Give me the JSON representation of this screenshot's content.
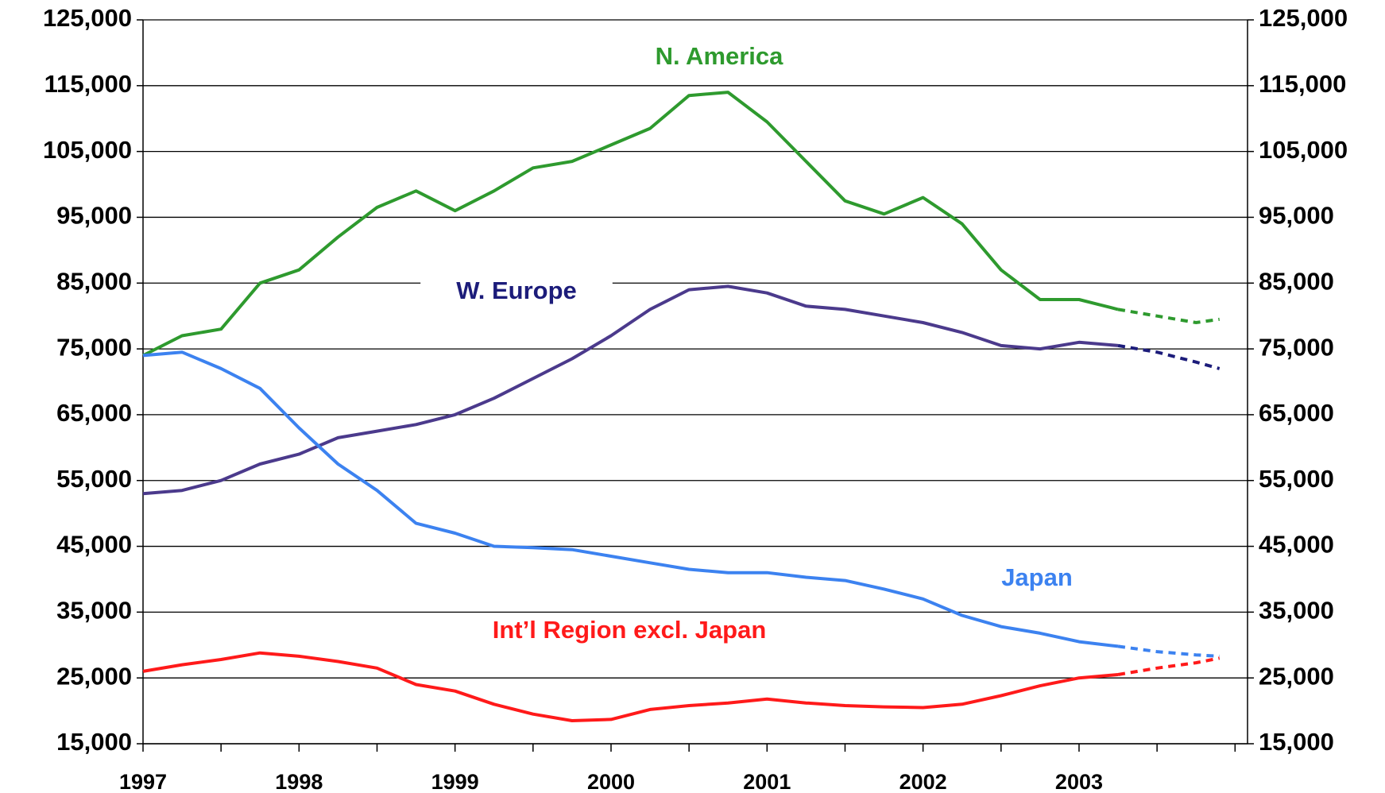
{
  "chart_data": {
    "type": "line",
    "x": [
      1997.0,
      1997.25,
      1997.5,
      1997.75,
      1998.0,
      1998.25,
      1998.5,
      1998.75,
      1999.0,
      1999.25,
      1999.5,
      1999.75,
      2000.0,
      2000.25,
      2000.5,
      2000.75,
      2001.0,
      2001.25,
      2001.5,
      2001.75,
      2002.0,
      2002.25,
      2002.5,
      2002.75,
      2003.0,
      2003.25
    ],
    "projection_x": [
      2003.25,
      2003.5,
      2003.75,
      2003.9
    ],
    "series": [
      {
        "name": "N. America",
        "color": "#2e9a2e",
        "values": [
          74000,
          77000,
          78000,
          85000,
          87000,
          92000,
          96500,
          99000,
          96000,
          99000,
          102500,
          103500,
          106000,
          108500,
          113500,
          114000,
          109500,
          103500,
          97500,
          95500,
          98000,
          94000,
          87000,
          82500,
          82500,
          81000
        ],
        "projection": [
          81000,
          80000,
          79000,
          79500
        ]
      },
      {
        "name": "W. Europe",
        "color": "#4b3a8c",
        "label_color": "#1c1c7a",
        "projection_color": "#1c1c7a",
        "values": [
          53000,
          53500,
          55000,
          57500,
          59000,
          61500,
          62500,
          63500,
          65000,
          67500,
          70500,
          73500,
          77000,
          81000,
          84000,
          84500,
          83500,
          81500,
          81000,
          80000,
          79000,
          77500,
          75500,
          75000,
          76000,
          75500
        ],
        "projection": [
          75500,
          74500,
          73000,
          72000
        ]
      },
      {
        "name": "Japan",
        "color": "#3c82f0",
        "values": [
          74000,
          74500,
          72000,
          69000,
          63000,
          57500,
          53500,
          48500,
          47000,
          45000,
          44800,
          44500,
          43500,
          42500,
          41500,
          41000,
          41000,
          40300,
          39800,
          38500,
          37000,
          34500,
          32800,
          31800,
          30500,
          29800
        ],
        "projection": [
          29800,
          29000,
          28500,
          28300
        ]
      },
      {
        "name": "Int’l Region excl. Japan",
        "color": "#ff1a1a",
        "values": [
          26000,
          27000,
          27800,
          28800,
          28300,
          27500,
          26500,
          24000,
          23000,
          21000,
          19500,
          18500,
          18700,
          20200,
          20800,
          21200,
          21800,
          21200,
          20800,
          20600,
          20500,
          21000,
          22300,
          23800,
          25000,
          25500
        ],
        "projection": [
          25500,
          26500,
          27300,
          28000
        ]
      }
    ],
    "xlim": [
      1997,
      2004.08
    ],
    "xticks": [
      1997,
      1998,
      1999,
      2000,
      2001,
      2002,
      2003
    ],
    "xminor": [
      1997.5,
      1998.5,
      1999.5,
      2000.5,
      2001.5,
      2002.5,
      2003.5,
      2004
    ],
    "ylim": [
      15000,
      125000
    ],
    "yticks": [
      {
        "value": 15000,
        "label": "15,000"
      },
      {
        "value": 25000,
        "label": "25,000"
      },
      {
        "value": 35000,
        "label": "35,000"
      },
      {
        "value": 45000,
        "label": "45,000"
      },
      {
        "value": 55000,
        "label": "55,000"
      },
      {
        "value": 65000,
        "label": "65,000"
      },
      {
        "value": 75000,
        "label": "75,000"
      },
      {
        "value": 85000,
        "label": "85,000"
      },
      {
        "value": 95000,
        "label": "95,000"
      },
      {
        "value": 105000,
        "label": "105,000"
      },
      {
        "value": 115000,
        "label": "115,000"
      },
      {
        "value": 125000,
        "label": "125,000"
      }
    ],
    "grid": true
  }
}
